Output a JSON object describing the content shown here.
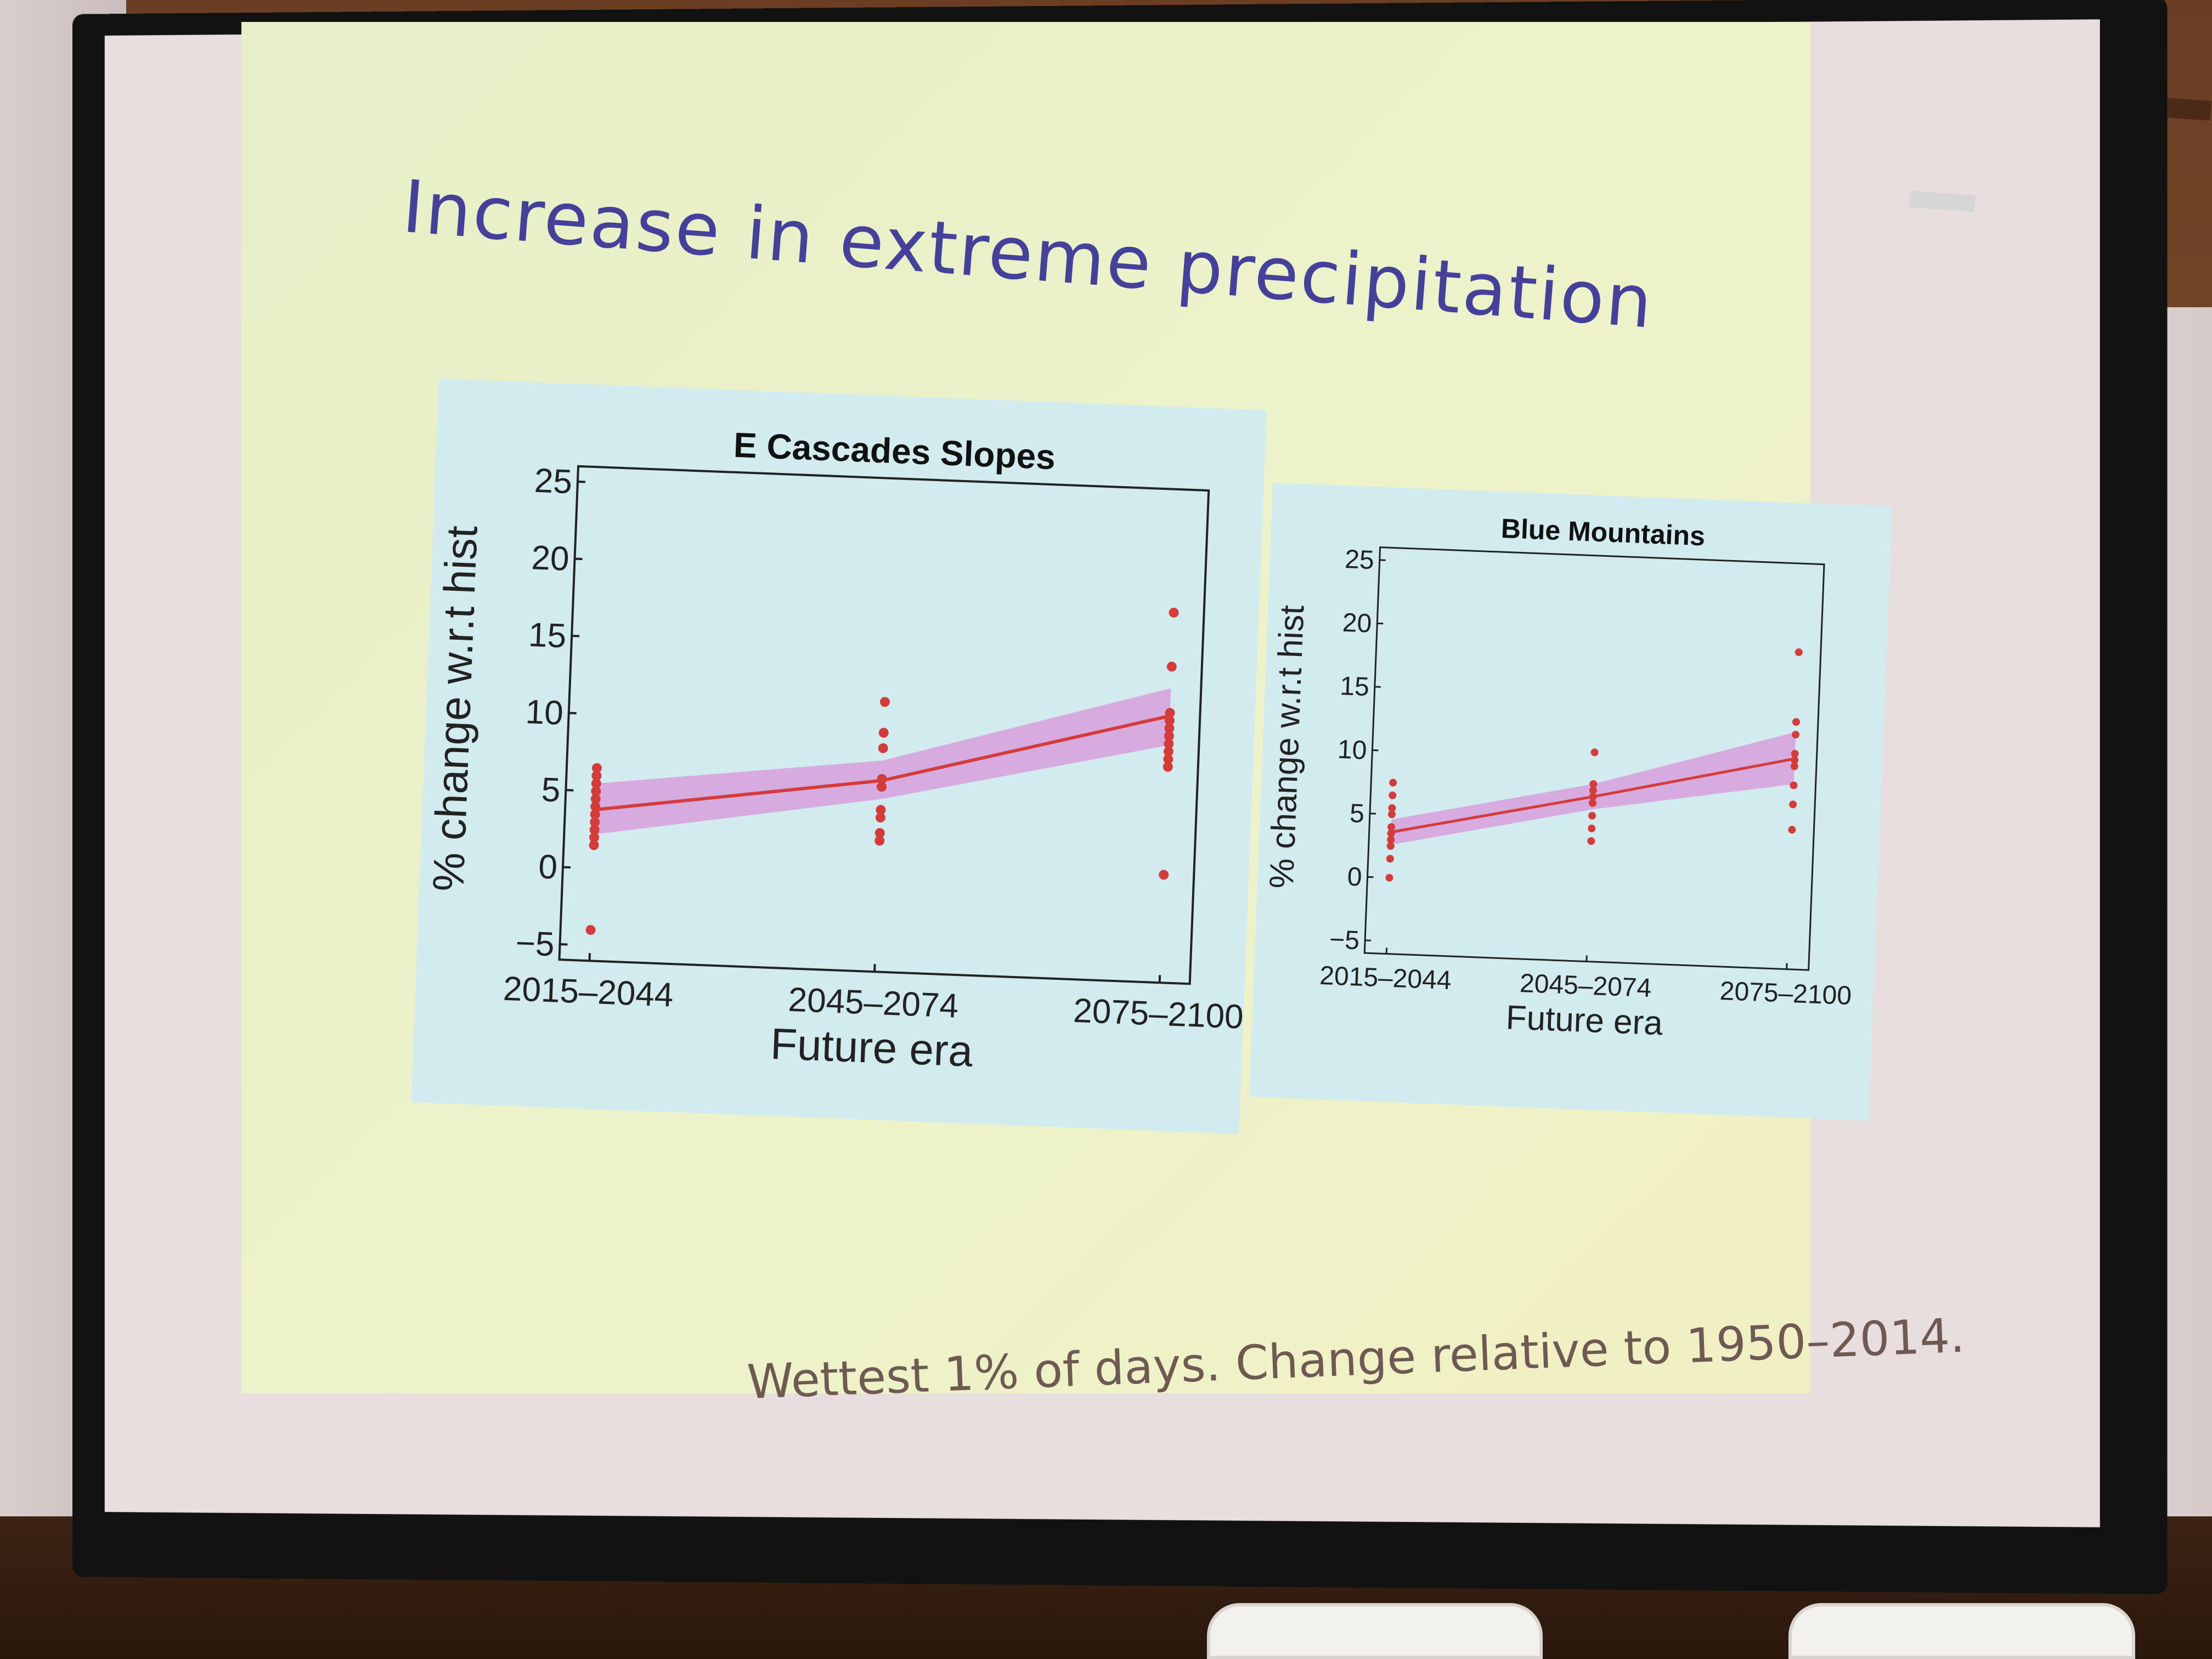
{
  "slide": {
    "title": "Increase in extreme precipitation",
    "caption": "Wettest 1% of days. Change relative to 1950–2014."
  },
  "colors": {
    "points": "#d43b3b",
    "line": "#d43b3b",
    "band": "#d896d9",
    "panel_bg": "#d2ebee",
    "title": "#45409a"
  },
  "chart_data": [
    {
      "type": "scatter",
      "title": "E Cascades Slopes",
      "xlabel": "Future era",
      "ylabel": "% change w.r.t hist",
      "categories": [
        "2015–2044",
        "2045–2074",
        "2075–2100"
      ],
      "yticks": [
        -5,
        0,
        5,
        10,
        15,
        20,
        25
      ],
      "ylim": [
        -6,
        26
      ],
      "series": [
        {
          "kind": "points",
          "points": [
            {
              "x": "2015–2044",
              "y": [
                -4,
                1.5,
                2,
                2.5,
                3,
                3.5,
                4,
                4.5,
                5,
                5.5,
                6,
                6.5
              ]
            },
            {
              "x": "2045–2074",
              "y": [
                2.5,
                3,
                4,
                4.5,
                6,
                6.5,
                8.5,
                9.5,
                11.5
              ]
            },
            {
              "x": "2075–2100",
              "y": [
                1,
                8,
                8.5,
                9,
                9.5,
                10,
                10.5,
                11,
                11.5,
                14.5,
                18
              ]
            }
          ]
        },
        {
          "kind": "line",
          "values": [
            3.8,
            6.4,
            11.3
          ]
        },
        {
          "kind": "band",
          "lower": [
            2.2,
            5.2,
            9.4
          ],
          "upper": [
            5.5,
            7.7,
            13.1
          ]
        }
      ]
    },
    {
      "type": "scatter",
      "title": "Blue Mountains",
      "xlabel": "Future era",
      "ylabel": "% change w.r.t hist",
      "categories": [
        "2015–2044",
        "2045–2074",
        "2075–2100"
      ],
      "yticks": [
        -5,
        0,
        5,
        10,
        15,
        20,
        25
      ],
      "ylim": [
        -6,
        26
      ],
      "series": [
        {
          "kind": "points",
          "points": [
            {
              "x": "2015–2044",
              "y": [
                0,
                1.5,
                2.5,
                3,
                3.5,
                4,
                5,
                5.5,
                6.5,
                7.5
              ]
            },
            {
              "x": "2045–2074",
              "y": [
                3.5,
                4.5,
                5.5,
                6.5,
                7,
                7.5,
                8,
                10.5
              ]
            },
            {
              "x": "2075–2100",
              "y": [
                5,
                7,
                8.5,
                10,
                10.5,
                11,
                12.5,
                13.5,
                19
              ]
            }
          ]
        },
        {
          "kind": "line",
          "values": [
            3.6,
            7.0,
            10.6
          ]
        },
        {
          "kind": "band",
          "lower": [
            2.6,
            6.0,
            8.6
          ],
          "upper": [
            4.6,
            8.0,
            12.7
          ]
        }
      ]
    }
  ]
}
